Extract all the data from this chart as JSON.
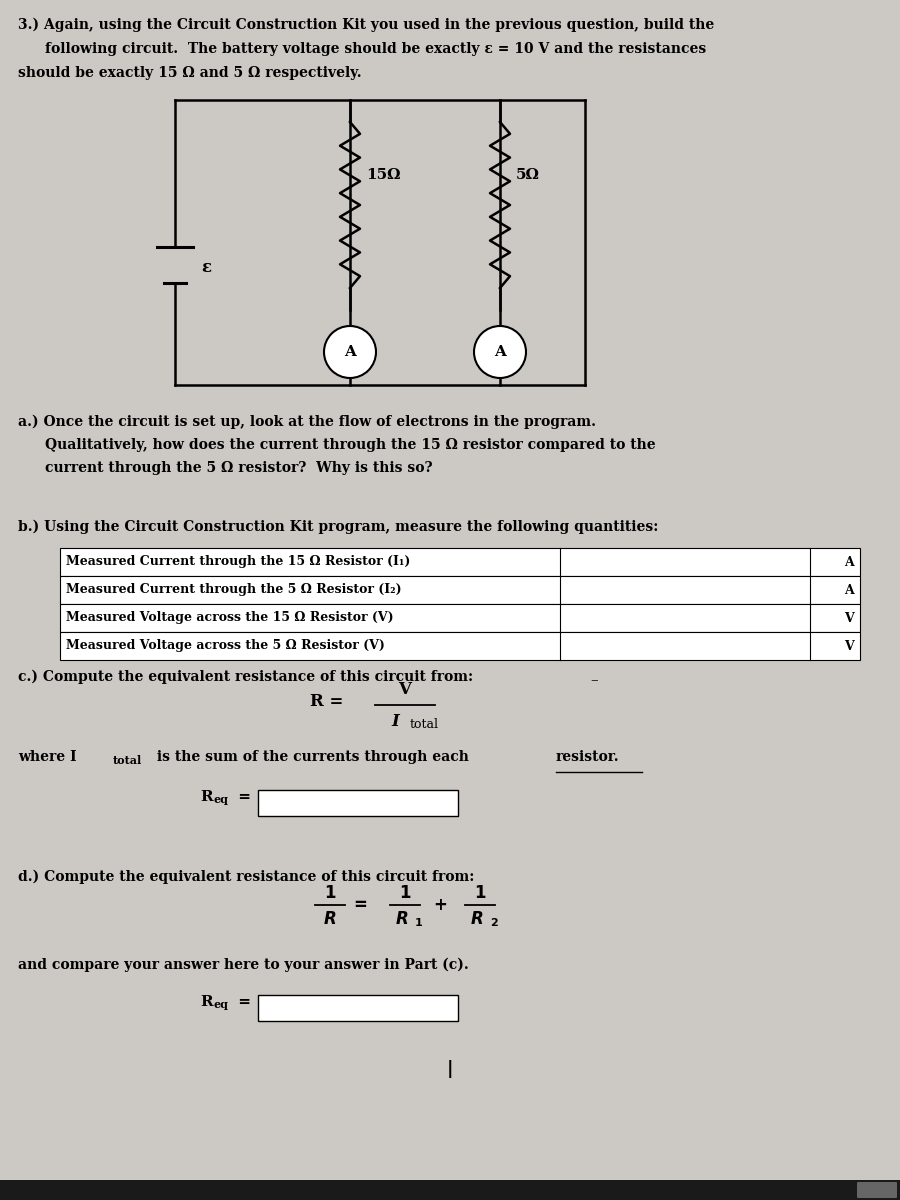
{
  "bg_color": "#ccc9c4",
  "title_line1": "3.) Again, using the Circuit Construction Kit you used in the previous question, build the",
  "title_line2": "following circuit.  The battery voltage should be exactly ε = 10 V and the resistances",
  "title_line3": "should be exactly 15 Ω and 5 Ω respectively.",
  "part_a_line1": "a.) Once the circuit is set up, look at the flow of electrons in the program.",
  "part_a_line2": "Qualitatively, how does the current through the 15 Ω resistor compared to the",
  "part_a_line3": "current through the 5 Ω resistor?  Why is this so?",
  "part_b": "b.) Using the Circuit Construction Kit program, measure the following quantities:",
  "table_rows": [
    [
      "Measured Current through the 15 Ω Resistor (I₁)",
      "A"
    ],
    [
      "Measured Current through the 5 Ω Resistor (I₂)",
      "A"
    ],
    [
      "Measured Voltage across the 15 Ω Resistor (V)",
      "V"
    ],
    [
      "Measured Voltage across the 5 Ω Resistor (V)",
      "V"
    ]
  ],
  "part_c_line1": "c.) Compute the equivalent resistance of this circuit from:",
  "part_c_where1": "where I",
  "part_c_where_sub": "total",
  "part_c_where2": " is the sum of the currents through each ",
  "part_c_resistor": "resistor.",
  "part_d_line1": "d.) Compute the equivalent resistance of this circuit from:",
  "part_d_compare": "and compare your answer here to your answer in Part (c).",
  "resistor1_label": "15Ω",
  "resistor2_label": "5Ω",
  "battery_label": "ε"
}
